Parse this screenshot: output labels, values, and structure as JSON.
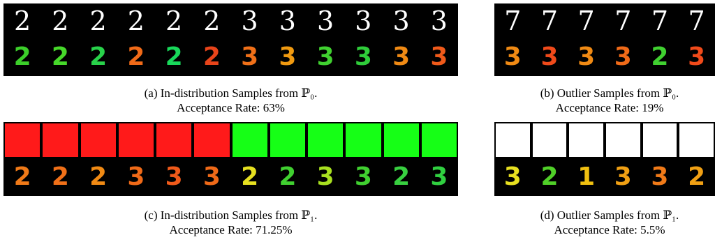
{
  "panels": [
    {
      "id": "a",
      "top_digits": [
        "2",
        "2",
        "2",
        "2",
        "2",
        "2",
        "3",
        "3",
        "3",
        "3",
        "3",
        "3"
      ],
      "top_colors": [
        "#ffffff",
        "#ffffff",
        "#ffffff",
        "#ffffff",
        "#ffffff",
        "#ffffff",
        "#ffffff",
        "#ffffff",
        "#ffffff",
        "#ffffff",
        "#ffffff",
        "#ffffff"
      ],
      "bottom_digits": [
        "2",
        "2",
        "2",
        "2",
        "2",
        "2",
        "3",
        "3",
        "3",
        "3",
        "3",
        "3"
      ],
      "bottom_colors": [
        "#3ccf2a",
        "#46d82a",
        "#28d24a",
        "#f06a18",
        "#18d85a",
        "#e8441a",
        "#f07018",
        "#f09a10",
        "#40d030",
        "#2fcc3a",
        "#f08a14",
        "#f05a1a"
      ],
      "caption_line1": "(a) In-distribution Samples from ℙ₀.",
      "caption_line2": "Acceptance Rate: 63%"
    },
    {
      "id": "b",
      "top_digits": [
        "7",
        "7",
        "7",
        "7",
        "7",
        "7"
      ],
      "top_colors": [
        "#ffffff",
        "#ffffff",
        "#ffffff",
        "#ffffff",
        "#ffffff",
        "#ffffff"
      ],
      "bottom_digits": [
        "3",
        "3",
        "3",
        "3",
        "2",
        "3"
      ],
      "bottom_colors": [
        "#f08a14",
        "#f04a1a",
        "#f08a14",
        "#f06a18",
        "#40d030",
        "#f04a1a"
      ],
      "caption_line1": "(b) Outlier Samples from ℙ₀.",
      "caption_line2": "Acceptance Rate: 19%"
    },
    {
      "id": "c",
      "swatches": [
        "#ff1a1a",
        "#ff1a1a",
        "#ff1a1a",
        "#ff1a1a",
        "#ff1a1a",
        "#ff1a1a",
        "#16ff16",
        "#16ff16",
        "#16ff16",
        "#16ff16",
        "#16ff16",
        "#16ff16"
      ],
      "bottom_digits": [
        "2",
        "2",
        "2",
        "3",
        "3",
        "3",
        "2",
        "2",
        "3",
        "3",
        "2",
        "3"
      ],
      "bottom_colors": [
        "#f07a18",
        "#f07018",
        "#f08a14",
        "#f06a18",
        "#f05a1a",
        "#f06a18",
        "#e6e020",
        "#40d030",
        "#a8e020",
        "#40d030",
        "#38d040",
        "#30d040"
      ],
      "caption_line1": "(c) In-distribution Samples from ℙ₁.",
      "caption_line2": "Acceptance Rate: 71.25%"
    },
    {
      "id": "d",
      "swatches": [
        "#ffffff",
        "#ffffff",
        "#ffffff",
        "#ffffff",
        "#ffffff",
        "#ffffff"
      ],
      "bottom_digits": [
        "3",
        "2",
        "1",
        "3",
        "3",
        "2"
      ],
      "bottom_colors": [
        "#e8e020",
        "#50d028",
        "#f0c010",
        "#f0a014",
        "#f07a18",
        "#f0a014"
      ],
      "caption_line1": "(d) Outlier Samples from ℙ₁.",
      "caption_line2": "Acceptance Rate: 5.5%"
    }
  ]
}
